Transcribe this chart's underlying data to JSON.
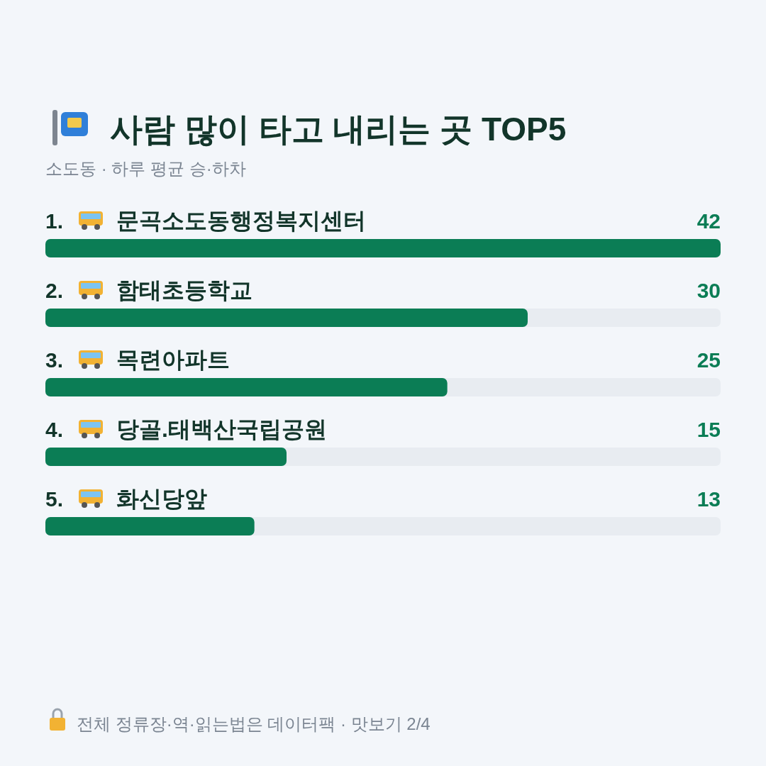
{
  "chart_data": {
    "type": "bar",
    "orientation": "horizontal",
    "title": "사람 많이 타고 내리는 곳 TOP5",
    "subtitle": "소도동 · 하루 평균 승·하차",
    "categories": [
      "1. 문곡소도동행정복지센터",
      "2. 함태초등학교",
      "3. 목련아파트",
      "4. 당골.태백산국립공원",
      "5. 화신당앞"
    ],
    "values": [
      42,
      30,
      25,
      15,
      13
    ],
    "color": "#0b7d55",
    "data_labels": true,
    "annotations": [
      "전체 정류장·역·읽는법은 데이터팩 · 맛보기 2/4"
    ]
  }
}
